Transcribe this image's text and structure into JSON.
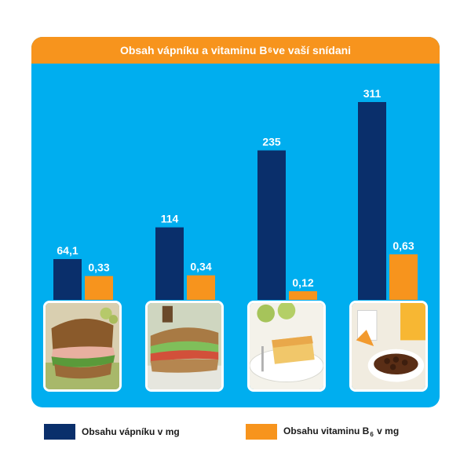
{
  "chart_data": {
    "type": "bar",
    "title": "Obsah vápníku a vitaminu B6 ve vaší snídani",
    "title_parts": {
      "before": "Obsah vápníku a vitaminu B",
      "sub": "6",
      "after": " ve vaší snídani"
    },
    "categories": [
      "",
      "",
      "",
      ""
    ],
    "series": [
      {
        "name": "Obsahu vápníku v mg",
        "name_parts": {
          "before": "Obsahu vápníku v mg",
          "sub": "",
          "after": ""
        },
        "values": [
          64.1,
          114,
          235,
          311
        ],
        "labels": [
          "64,1",
          "114",
          "235",
          "311"
        ],
        "color": "#0a2f6b"
      },
      {
        "name": "Obsahu vitaminu B6 v mg",
        "name_parts": {
          "before": "Obsahu vitaminu B",
          "sub": "6",
          "after": " v mg"
        },
        "values": [
          0.33,
          0.34,
          0.12,
          0.63
        ],
        "labels": [
          "0,33",
          "0,34",
          "0,12",
          "0,63"
        ],
        "color": "#f7941d"
      }
    ],
    "legend_position": "bottom",
    "grid": false
  },
  "colors": {
    "panel": "#00aeef",
    "title_bar": "#f7941d"
  },
  "photos": [
    {
      "icon": "sandwich-photo-icon"
    },
    {
      "icon": "baguette-photo-icon"
    },
    {
      "icon": "cake-photo-icon"
    },
    {
      "icon": "cereal-photo-icon"
    }
  ]
}
